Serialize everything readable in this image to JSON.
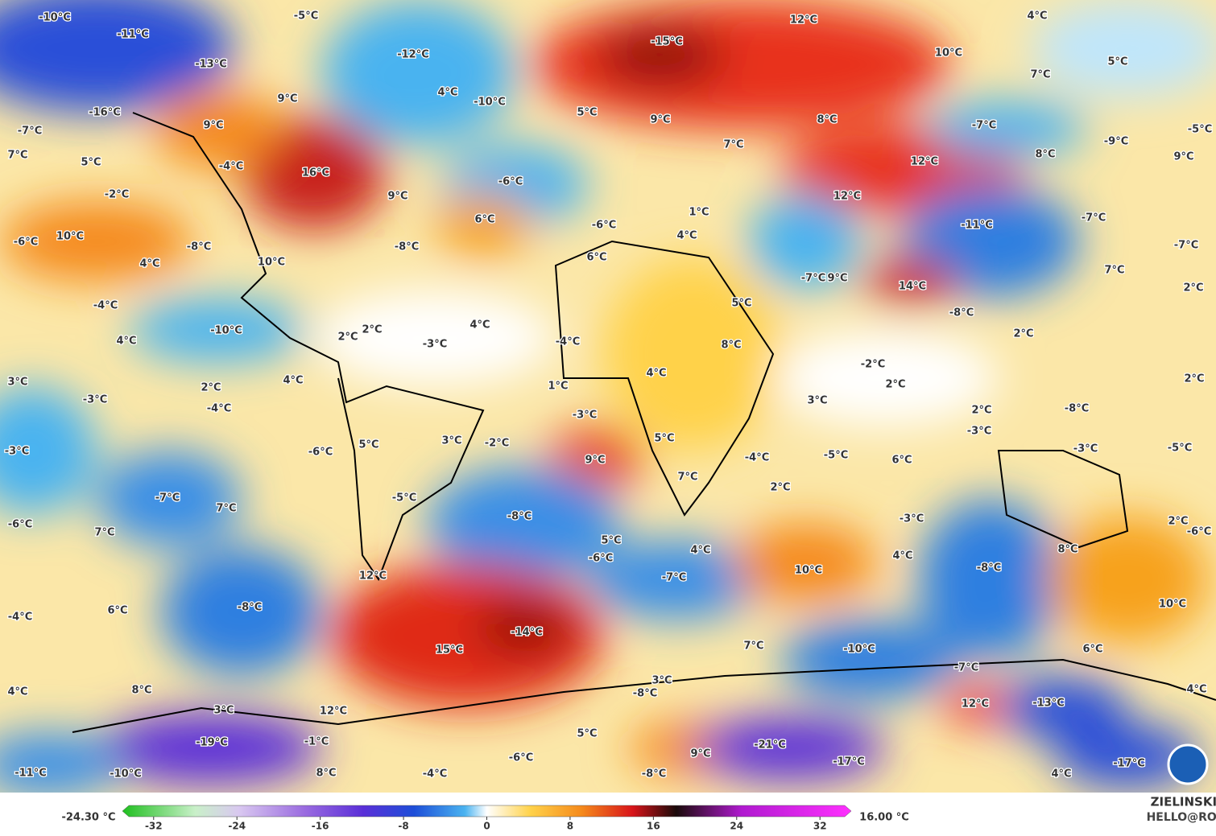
{
  "map_labels": [
    "-10°C",
    "-5°C",
    "-11°C",
    "-13°C",
    "-12°C",
    "12°C",
    "4°C",
    "-15°C",
    "10°C",
    "5°C",
    "7°C",
    "4°C",
    "-10°C",
    "9°C",
    "5°C",
    "-16°C",
    "9°C",
    "8°C",
    "-7°C",
    "-5°C",
    "-7°C",
    "9°C",
    "7°C",
    "7°C",
    "5°C",
    "-4°C",
    "16°C",
    "12°C",
    "8°C",
    "-9°C",
    "9°C",
    "-6°C",
    "-2°C",
    "9°C",
    "12°C",
    "6°C",
    "-6°C",
    "1°C",
    "-11°C",
    "-7°C",
    "-6°C",
    "10°C",
    "-8°C",
    "-8°C",
    "4°C",
    "-7°C",
    "4°C",
    "10°C",
    "6°C",
    "7°C",
    "-7°C",
    "9°C",
    "14°C",
    "2°C",
    "-4°C",
    "5°C",
    "-8°C",
    "-10°C",
    "4°C",
    "4°C",
    "2°C",
    "2°C",
    "-3°C",
    "-4°C",
    "8°C",
    "2°C",
    "-2°C",
    "3°C",
    "4°C",
    "2°C",
    "1°C",
    "4°C",
    "2°C",
    "2°C",
    "-3°C",
    "-4°C",
    "3°C",
    "2°C",
    "-8°C",
    "-3°C",
    "-3°C",
    "-3°C",
    "-6°C",
    "5°C",
    "3°C",
    "-2°C",
    "5°C",
    "-5°C",
    "6°C",
    "-3°C",
    "-5°C",
    "9°C",
    "-4°C",
    "7°C",
    "2°C",
    "-7°C",
    "-5°C",
    "7°C",
    "-8°C",
    "-3°C",
    "-6°C",
    "2°C",
    "-6°C",
    "7°C",
    "5°C",
    "-6°C",
    "4°C",
    "4°C",
    "8°C",
    "12°C",
    "-7°C",
    "10°C",
    "-8°C",
    "10°C",
    "-8°C",
    "6°C",
    "-4°C",
    "-14°C",
    "15°C",
    "7°C",
    "-10°C",
    "6°C",
    "-7°C",
    "3°C",
    "-8°C",
    "4°C",
    "8°C",
    "4°C",
    "3°C",
    "12°C",
    "12°C",
    "-13°C",
    "5°C",
    "-19°C",
    "-1°C",
    "-21°C",
    "9°C",
    "-6°C",
    "-17°C",
    "-17°C",
    "-11°C",
    "-10°C",
    "8°C",
    "-4°C",
    "-8°C",
    "4°C"
  ],
  "colorbar": {
    "min_label": "-24.30 °C",
    "max_label": "16.00 °C",
    "lim": [
      -35,
      35
    ],
    "ticks": [
      -32,
      -24,
      -16,
      -8,
      0,
      8,
      16,
      24,
      32
    ]
  },
  "credit": {
    "name": "ZIELINSKI ROBERT",
    "email": "HELLO@ROBERTZ.CO"
  }
}
